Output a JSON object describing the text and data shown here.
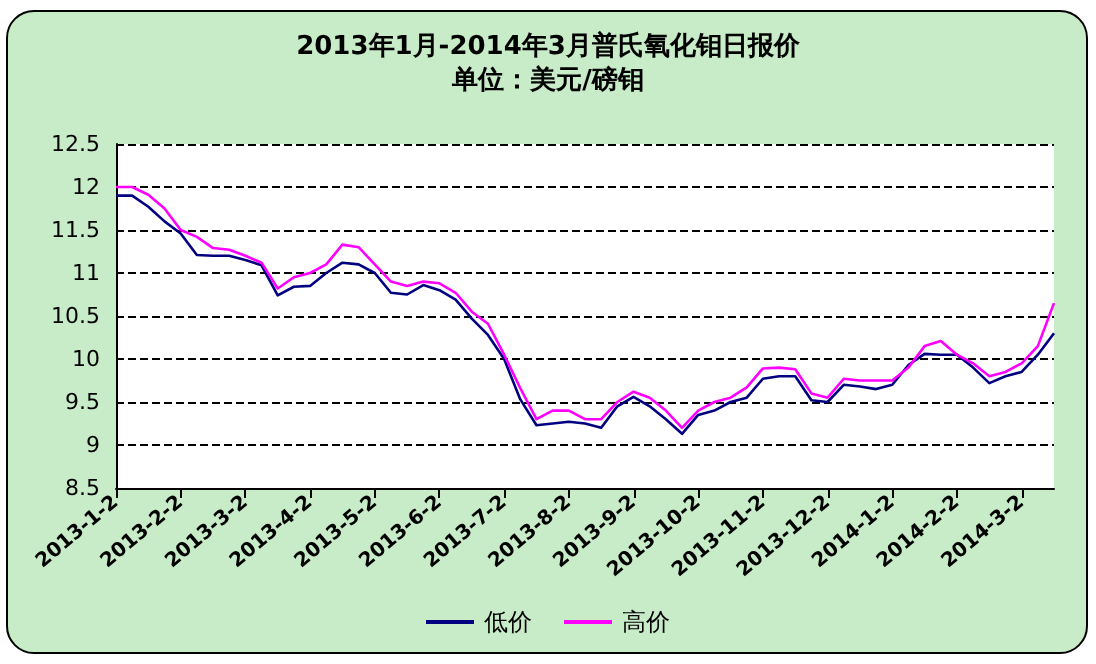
{
  "chart_data": {
    "type": "line",
    "title": "2013年1月-2014年3月普氏氧化钼日报价",
    "subtitle": "单位：美元/磅钼",
    "categories": [
      "2013-1-2",
      null,
      null,
      null,
      "2013-2-2",
      null,
      null,
      null,
      "2013-3-2",
      null,
      null,
      null,
      "2013-4-2",
      null,
      null,
      null,
      "2013-5-2",
      null,
      null,
      null,
      "2013-6-2",
      null,
      null,
      null,
      "2013-7-2",
      null,
      null,
      null,
      "2013-8-2",
      null,
      null,
      null,
      "2013-9-2",
      null,
      null,
      null,
      "2013-10-2",
      null,
      null,
      null,
      "2013-11-2",
      null,
      null,
      null,
      "2013-12-2",
      null,
      null,
      null,
      "2014-1-2",
      null,
      null,
      null,
      "2014-2-2",
      null,
      null,
      null,
      "2014-3-2",
      null,
      null
    ],
    "series": [
      {
        "name": "低价",
        "color": "#000080",
        "values": [
          11.9,
          11.9,
          11.77,
          11.6,
          11.46,
          11.21,
          11.2,
          11.2,
          11.15,
          11.09,
          10.74,
          10.84,
          10.85,
          11.0,
          11.12,
          11.1,
          11.0,
          10.77,
          10.75,
          10.86,
          10.8,
          10.69,
          10.47,
          10.28,
          10.0,
          9.53,
          9.23,
          9.25,
          9.27,
          9.25,
          9.2,
          9.45,
          9.56,
          9.45,
          9.3,
          9.13,
          9.35,
          9.4,
          9.5,
          9.55,
          9.77,
          9.8,
          9.8,
          9.52,
          9.5,
          9.7,
          9.68,
          9.65,
          9.7,
          9.93,
          10.06,
          10.05,
          10.05,
          9.9,
          9.72,
          9.8,
          9.85,
          10.05,
          10.3
        ]
      },
      {
        "name": "高价",
        "color": "#ff00ff",
        "values": [
          12.0,
          12.0,
          11.91,
          11.75,
          11.5,
          11.42,
          11.29,
          11.27,
          11.2,
          11.12,
          10.82,
          10.95,
          11.0,
          11.1,
          11.33,
          11.3,
          11.1,
          10.9,
          10.85,
          10.9,
          10.88,
          10.77,
          10.55,
          10.41,
          10.05,
          9.66,
          9.3,
          9.4,
          9.4,
          9.3,
          9.3,
          9.5,
          9.62,
          9.55,
          9.4,
          9.2,
          9.4,
          9.5,
          9.55,
          9.67,
          9.89,
          9.9,
          9.88,
          9.6,
          9.55,
          9.77,
          9.75,
          9.75,
          9.75,
          9.9,
          10.15,
          10.21,
          10.05,
          9.95,
          9.8,
          9.85,
          9.95,
          10.15,
          10.65
        ]
      }
    ],
    "ylim": [
      8.5,
      12.5
    ],
    "yticks": [
      8.5,
      9,
      9.5,
      10,
      10.5,
      11,
      11.5,
      12,
      12.5
    ],
    "grid": "y",
    "legend": "bottom",
    "marker": "none",
    "line_style": "solid"
  }
}
